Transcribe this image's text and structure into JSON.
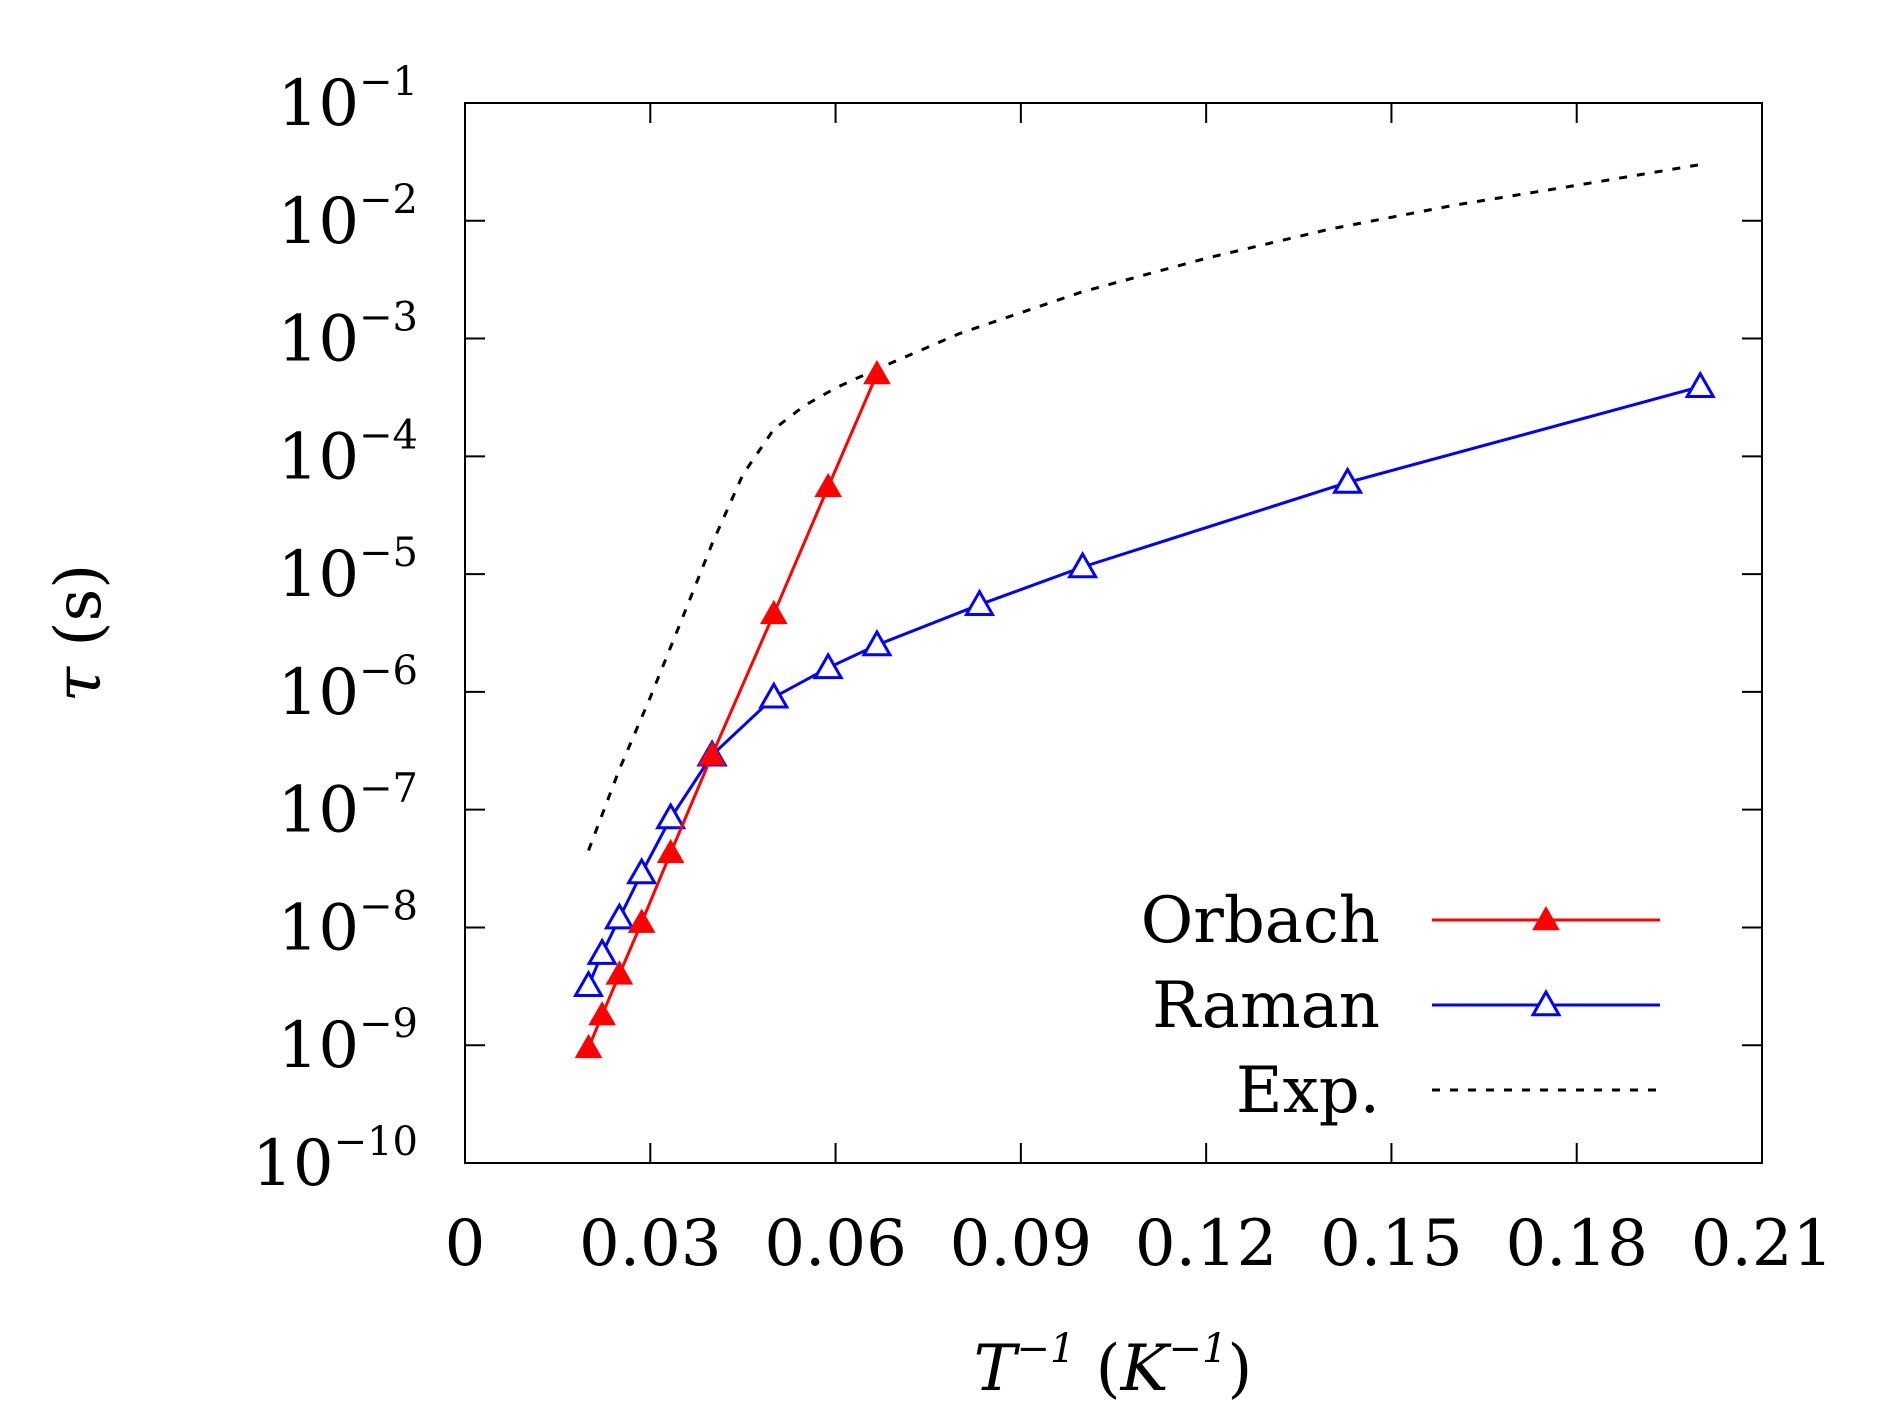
{
  "chart_data": {
    "type": "line",
    "xlabel": {
      "base": "T",
      "sup": "−1",
      "unit_open": " (",
      "unit_base": "K",
      "unit_sup": "−1",
      "unit_close": ")"
    },
    "ylabel": {
      "symbol": "τ",
      "unit": " (s)"
    },
    "xlim": [
      0,
      0.21
    ],
    "ylim_log10": [
      -10,
      -1
    ],
    "y_scale": "log",
    "grid": false,
    "legend_position": "bottom-right",
    "x_ticks": [
      {
        "value": 0,
        "label": "0"
      },
      {
        "value": 0.03,
        "label": "0.03"
      },
      {
        "value": 0.06,
        "label": "0.06"
      },
      {
        "value": 0.09,
        "label": "0.09"
      },
      {
        "value": 0.12,
        "label": "0.12"
      },
      {
        "value": 0.15,
        "label": "0.15"
      },
      {
        "value": 0.18,
        "label": "0.18"
      },
      {
        "value": 0.21,
        "label": "0.21"
      }
    ],
    "y_ticks": [
      {
        "exp": -1,
        "base": "10",
        "sup": "−1"
      },
      {
        "exp": -2,
        "base": "10",
        "sup": "−2"
      },
      {
        "exp": -3,
        "base": "10",
        "sup": "−3"
      },
      {
        "exp": -4,
        "base": "10",
        "sup": "−4"
      },
      {
        "exp": -5,
        "base": "10",
        "sup": "−5"
      },
      {
        "exp": -6,
        "base": "10",
        "sup": "−6"
      },
      {
        "exp": -7,
        "base": "10",
        "sup": "−7"
      },
      {
        "exp": -8,
        "base": "10",
        "sup": "−8"
      },
      {
        "exp": -9,
        "base": "10",
        "sup": "−9"
      },
      {
        "exp": -10,
        "base": "10",
        "sup": "−10"
      }
    ],
    "series": [
      {
        "name": "Orbach",
        "color": "#ff0000",
        "marker": "filled-triangle",
        "line_style": "solid",
        "points": [
          {
            "x": 0.02,
            "y": 9.5e-10
          },
          {
            "x": 0.0222,
            "y": 1.8e-09
          },
          {
            "x": 0.025,
            "y": 4e-09
          },
          {
            "x": 0.0286,
            "y": 1.1e-08
          },
          {
            "x": 0.0333,
            "y": 4.3e-08
          },
          {
            "x": 0.04,
            "y": 2.9e-07
          },
          {
            "x": 0.05,
            "y": 4.6e-06
          },
          {
            "x": 0.0588,
            "y": 5.5e-05
          },
          {
            "x": 0.0667,
            "y": 0.0005
          }
        ]
      },
      {
        "name": "Raman",
        "color": "#0000ff",
        "marker": "open-triangle",
        "line_style": "solid",
        "points": [
          {
            "x": 0.02,
            "y": 3.2e-09
          },
          {
            "x": 0.0222,
            "y": 6e-09
          },
          {
            "x": 0.025,
            "y": 1.2e-08
          },
          {
            "x": 0.0286,
            "y": 2.9e-08
          },
          {
            "x": 0.0333,
            "y": 8.5e-08
          },
          {
            "x": 0.04,
            "y": 2.9e-07
          },
          {
            "x": 0.05,
            "y": 9e-07
          },
          {
            "x": 0.0588,
            "y": 1.6e-06
          },
          {
            "x": 0.0667,
            "y": 2.5e-06
          },
          {
            "x": 0.0833,
            "y": 5.5e-06
          },
          {
            "x": 0.1,
            "y": 1.15e-05
          },
          {
            "x": 0.1429,
            "y": 6e-05
          },
          {
            "x": 0.2,
            "y": 0.00039
          }
        ]
      },
      {
        "name": "Exp.",
        "color": "#000000",
        "marker": "none",
        "line_style": "dashed",
        "points": [
          {
            "x": 0.02,
            "y": 4.5e-08
          },
          {
            "x": 0.025,
            "y": 2.2e-07
          },
          {
            "x": 0.03,
            "y": 9e-07
          },
          {
            "x": 0.035,
            "y": 4e-06
          },
          {
            "x": 0.04,
            "y": 1.8e-05
          },
          {
            "x": 0.045,
            "y": 7e-05
          },
          {
            "x": 0.05,
            "y": 0.00017
          },
          {
            "x": 0.055,
            "y": 0.00027
          },
          {
            "x": 0.06,
            "y": 0.00038
          },
          {
            "x": 0.0667,
            "y": 0.00055
          },
          {
            "x": 0.08,
            "y": 0.0011
          },
          {
            "x": 0.1,
            "y": 0.0025
          },
          {
            "x": 0.12,
            "y": 0.0048
          },
          {
            "x": 0.14,
            "y": 0.0085
          },
          {
            "x": 0.16,
            "y": 0.0135
          },
          {
            "x": 0.18,
            "y": 0.02
          },
          {
            "x": 0.2,
            "y": 0.03
          }
        ]
      }
    ]
  }
}
